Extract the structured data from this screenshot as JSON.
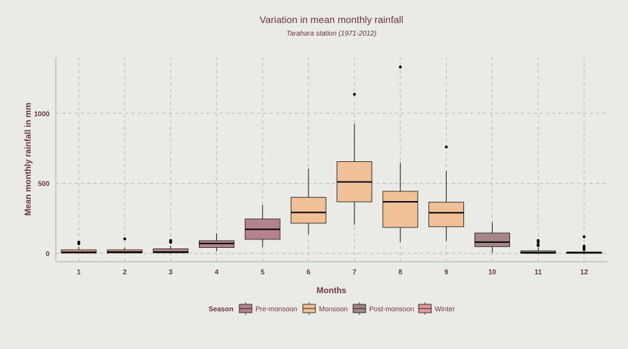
{
  "chart_data": {
    "type": "boxplot",
    "title": "Variation in mean monthly rainfall",
    "subtitle": "Tarahara station (1971-2012)",
    "xlabel": "Months",
    "ylabel": "Mean monthly rainfall in mm",
    "ylim": [
      -60,
      1400
    ],
    "y_ticks": [
      0,
      500,
      1000
    ],
    "grid": true,
    "legend": {
      "title": "Season",
      "placement": "bottom",
      "items": [
        {
          "name": "Pre-monsoon",
          "color": "#b5838d"
        },
        {
          "name": "Monsoon",
          "color": "#f0c096"
        },
        {
          "name": "Post-monsoon",
          "color": "#a48686"
        },
        {
          "name": "Winter",
          "color": "#e49a98"
        }
      ]
    },
    "categories": [
      "1",
      "2",
      "3",
      "4",
      "5",
      "6",
      "7",
      "8",
      "9",
      "10",
      "11",
      "12"
    ],
    "boxes": [
      {
        "month": "1",
        "season": "Winter",
        "min": 0,
        "q1": 2,
        "median": 8,
        "q3": 25,
        "max": 45,
        "outliers": [
          68,
          80
        ]
      },
      {
        "month": "2",
        "season": "Winter",
        "min": 0,
        "q1": 3,
        "median": 10,
        "q3": 25,
        "max": 40,
        "outliers": [
          103
        ]
      },
      {
        "month": "3",
        "season": "Pre-monsoon",
        "min": 0,
        "q1": 4,
        "median": 10,
        "q3": 32,
        "max": 55,
        "outliers": [
          78,
          85,
          92
        ]
      },
      {
        "month": "4",
        "season": "Pre-monsoon",
        "min": 15,
        "q1": 42,
        "median": 70,
        "q3": 90,
        "max": 142,
        "outliers": []
      },
      {
        "month": "5",
        "season": "Pre-monsoon",
        "min": 45,
        "q1": 100,
        "median": 172,
        "q3": 245,
        "max": 345,
        "outliers": []
      },
      {
        "month": "6",
        "season": "Monsoon",
        "min": 135,
        "q1": 215,
        "median": 292,
        "q3": 400,
        "max": 605,
        "outliers": []
      },
      {
        "month": "7",
        "season": "Monsoon",
        "min": 205,
        "q1": 368,
        "median": 510,
        "q3": 655,
        "max": 925,
        "outliers": [
          1135
        ]
      },
      {
        "month": "8",
        "season": "Monsoon",
        "min": 82,
        "q1": 185,
        "median": 368,
        "q3": 443,
        "max": 648,
        "outliers": [
          1330
        ]
      },
      {
        "month": "9",
        "season": "Monsoon",
        "min": 90,
        "q1": 190,
        "median": 290,
        "q3": 365,
        "max": 590,
        "outliers": [
          760
        ]
      },
      {
        "month": "10",
        "season": "Post-monsoon",
        "min": 5,
        "q1": 48,
        "median": 80,
        "q3": 145,
        "max": 220,
        "outliers": []
      },
      {
        "month": "11",
        "season": "Post-monsoon",
        "min": 0,
        "q1": 0,
        "median": 5,
        "q3": 18,
        "max": 40,
        "outliers": [
          55,
          62,
          80,
          92
        ]
      },
      {
        "month": "12",
        "season": "Winter",
        "min": 0,
        "q1": 0,
        "median": 5,
        "q3": 10,
        "max": 20,
        "outliers": [
          28,
          38,
          45,
          52,
          118
        ]
      }
    ]
  }
}
